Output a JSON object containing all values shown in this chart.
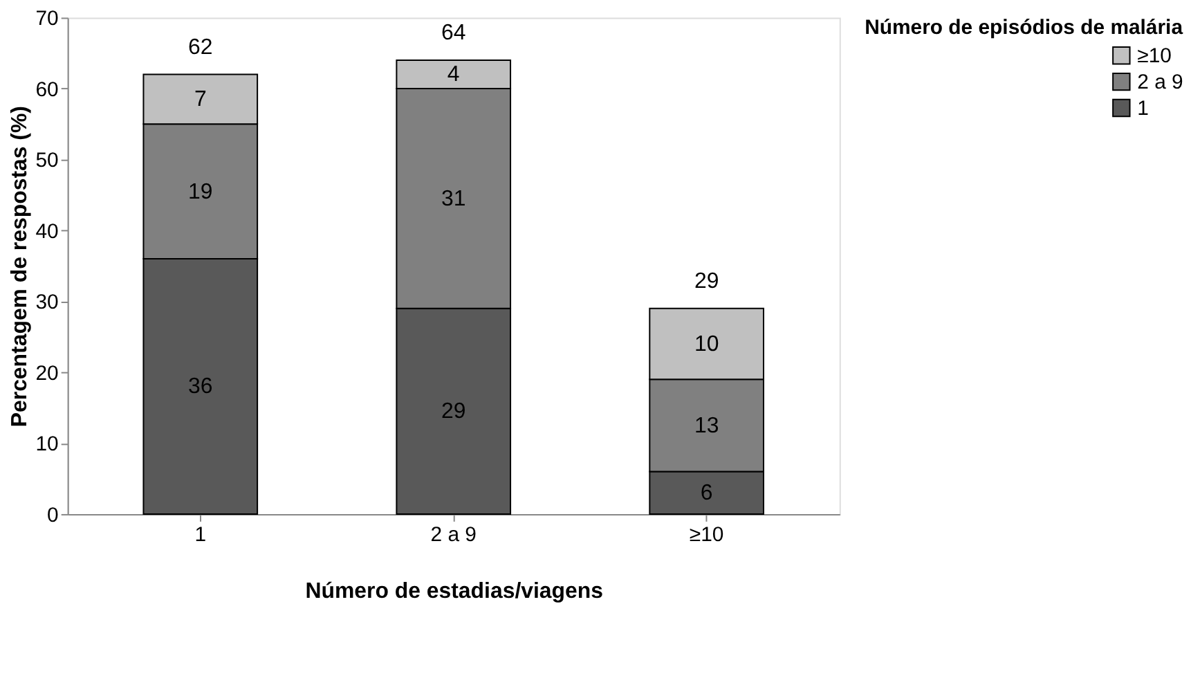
{
  "chart_data": {
    "type": "bar",
    "stacked": true,
    "xlabel": "Número de estadias/viagens",
    "ylabel": "Percentagem de respostas (%)",
    "legend_title": "Número de episódios de malária",
    "categories": [
      "1",
      "2 a 9",
      "≥10"
    ],
    "series": [
      {
        "name": "1",
        "color": "#595959",
        "values": [
          36,
          29,
          6
        ]
      },
      {
        "name": "2 a 9",
        "color": "#808080",
        "values": [
          19,
          31,
          13
        ]
      },
      {
        "name": "≥10",
        "color": "#c0c0c0",
        "values": [
          7,
          4,
          10
        ]
      }
    ],
    "totals": [
      "62",
      "64",
      "29"
    ],
    "data_labels": true,
    "ylim": [
      0,
      70
    ],
    "yticks": [
      0,
      10,
      20,
      30,
      40,
      50,
      60,
      70
    ],
    "grid": false,
    "legend": "right"
  }
}
